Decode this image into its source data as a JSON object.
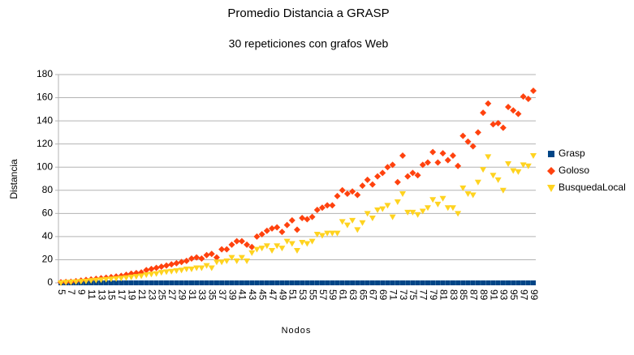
{
  "chart_data": {
    "type": "scatter",
    "title": "Promedio Distancia a GRASP",
    "subtitle": "30 repeticiones con grafos Web",
    "x_label": "Nodos",
    "y_label": "Distancia",
    "categories": [
      5,
      null,
      7,
      null,
      9,
      null,
      11,
      null,
      13,
      null,
      15,
      null,
      17,
      null,
      19,
      null,
      21,
      null,
      23,
      null,
      25,
      null,
      27,
      null,
      29,
      null,
      31,
      null,
      33,
      null,
      35,
      null,
      37,
      null,
      39,
      null,
      41,
      null,
      43,
      null,
      45,
      null,
      47,
      null,
      49,
      null,
      51,
      null,
      53,
      null,
      55,
      null,
      57,
      null,
      59,
      null,
      61,
      null,
      63,
      null,
      65,
      null,
      67,
      null,
      69,
      null,
      71,
      null,
      73,
      null,
      75,
      null,
      77,
      null,
      79,
      null,
      81,
      null,
      83,
      null,
      85,
      null,
      87,
      null,
      89,
      null,
      91,
      null,
      93,
      null,
      95,
      null,
      97,
      null,
      99
    ],
    "ylim": [
      0,
      180
    ],
    "yticks": [
      0,
      20,
      40,
      60,
      80,
      100,
      120,
      140,
      160,
      180
    ],
    "grid": true,
    "legend": "right",
    "series": [
      {
        "name": "Grasp",
        "color": "#004586",
        "marker": "square",
        "values": [
          0,
          0,
          0,
          0,
          0,
          0,
          0,
          0,
          0,
          0,
          0,
          0,
          0,
          0,
          0,
          0,
          0,
          0,
          0,
          0,
          0,
          0,
          0,
          0,
          0,
          0,
          0,
          0,
          0,
          0,
          0,
          0,
          0,
          0,
          0,
          0,
          0,
          0,
          0,
          0,
          0,
          0,
          0,
          0,
          0,
          0,
          0,
          0,
          0,
          0,
          0,
          0,
          0,
          0,
          0,
          0,
          0,
          0,
          0,
          0,
          0,
          0,
          0,
          0,
          0,
          0,
          0,
          0,
          0,
          0,
          0,
          0,
          0,
          0,
          0,
          0,
          0,
          0,
          0,
          0,
          0,
          0,
          0,
          0,
          0,
          0,
          0,
          0,
          0,
          0,
          0,
          0,
          0,
          0,
          0
        ]
      },
      {
        "name": "Goloso",
        "color": "#ff420e",
        "marker": "diamond",
        "values": [
          0.5,
          0.8,
          1,
          1.5,
          2,
          2.5,
          3,
          3.5,
          4,
          4.5,
          5,
          5.5,
          6,
          7,
          8,
          8.5,
          9,
          11,
          12,
          13,
          14,
          15,
          16,
          17,
          18,
          19,
          21,
          22,
          21,
          24,
          25,
          22,
          29,
          29,
          33,
          36,
          36,
          33,
          31,
          40,
          42,
          45,
          47,
          48,
          44,
          50,
          54,
          46,
          56,
          55,
          57,
          63,
          65,
          67,
          67,
          75,
          80,
          77,
          79,
          76,
          84,
          89,
          85,
          92,
          95,
          100,
          102,
          87,
          110,
          92,
          95,
          93,
          102,
          104,
          113,
          104,
          112,
          106,
          110,
          101,
          127,
          122,
          118,
          130,
          147,
          155,
          137,
          138,
          134,
          152,
          149,
          146,
          161,
          159,
          166
        ]
      },
      {
        "name": "BusquedaLocal",
        "color": "#ffd320",
        "marker": "triangle",
        "values": [
          0,
          0.5,
          0.7,
          1,
          1.2,
          1.5,
          2,
          2.3,
          2.6,
          3,
          3.3,
          3.7,
          4,
          4.5,
          5,
          5.5,
          6,
          7,
          7.5,
          8,
          9,
          9.5,
          10,
          10.5,
          11,
          12,
          12,
          13,
          13,
          15,
          13,
          18,
          18,
          19,
          22,
          19,
          22,
          19,
          26,
          29,
          30,
          32,
          28,
          32,
          30,
          36,
          34,
          28,
          35,
          34,
          36,
          42,
          41,
          43,
          43,
          43,
          53,
          50,
          54,
          46,
          52,
          60,
          56,
          63,
          64,
          67,
          57,
          70,
          77,
          61,
          61,
          59,
          62,
          65,
          72,
          68,
          73,
          65,
          65,
          60,
          82,
          77,
          76,
          87,
          98,
          109,
          93,
          89,
          80,
          103,
          97,
          96,
          102,
          101,
          110
        ]
      }
    ]
  }
}
